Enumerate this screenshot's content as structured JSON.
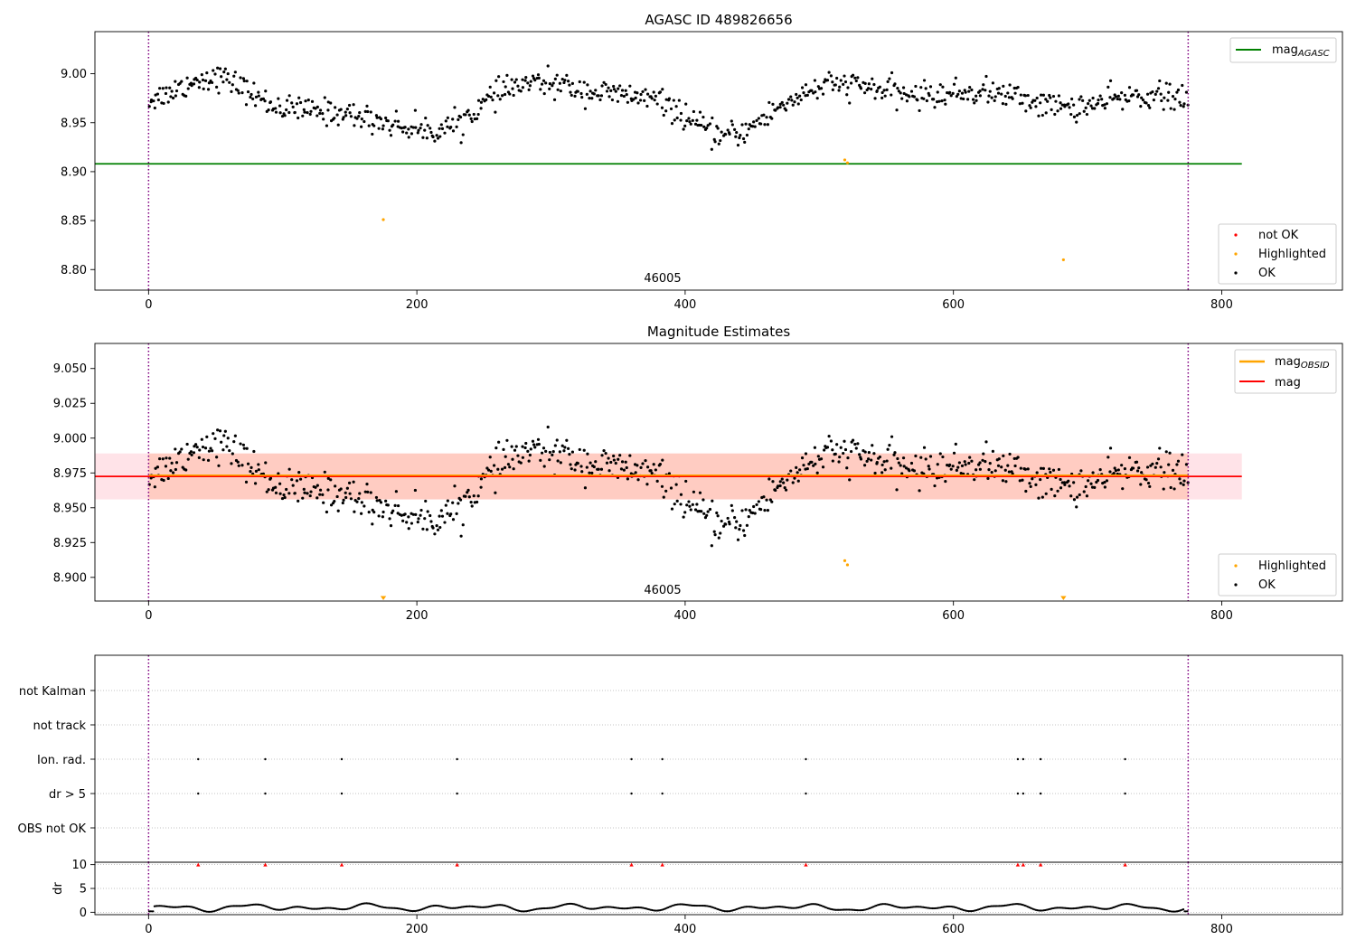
{
  "chart_data": [
    {
      "type": "scatter",
      "title": "AGASC ID 489826656",
      "xlim": [
        -40,
        890
      ],
      "ylim": [
        8.779,
        9.043
      ],
      "xticks": [
        0,
        200,
        400,
        600,
        800
      ],
      "yticks": [
        8.8,
        8.85,
        8.9,
        8.95,
        9.0
      ],
      "ytick_labels": [
        "8.80",
        "8.85",
        "8.90",
        "8.95",
        "9.00"
      ],
      "obsid_label": "46005",
      "obsid_boundaries": [
        0,
        775
      ],
      "lines": [
        {
          "name": "mag$_{AGASC}$",
          "label_main": "mag",
          "label_sub": "AGASC",
          "y": 8.908,
          "x": [
            -40,
            815
          ],
          "color": "#008000"
        }
      ],
      "legend_lines_position": "upper right",
      "legend_points_position": "lower right",
      "series": [
        {
          "name": "not OK",
          "color": "#ff0000",
          "points": []
        },
        {
          "name": "Highlighted",
          "color": "#ffa500",
          "points": [
            [
              175,
              8.851
            ],
            [
              519,
              8.912
            ],
            [
              521,
              8.909
            ],
            [
              682,
              8.81
            ]
          ]
        },
        {
          "name": "OK",
          "color": "#000000",
          "model": "lightcurve",
          "n_points": 775
        }
      ]
    },
    {
      "type": "scatter",
      "title": "Magnitude Estimates",
      "xlim": [
        -40,
        890
      ],
      "ylim": [
        8.883,
        9.068
      ],
      "xticks": [
        0,
        200,
        400,
        600,
        800
      ],
      "yticks": [
        8.9,
        8.925,
        8.95,
        8.975,
        9.0,
        9.025,
        9.05
      ],
      "ytick_labels": [
        "8.900",
        "8.925",
        "8.950",
        "8.975",
        "9.000",
        "9.025",
        "9.050"
      ],
      "obsid_label": "46005",
      "obsid_boundaries": [
        0,
        775
      ],
      "bands": [
        {
          "y0": 8.956,
          "y1": 8.989,
          "x": [
            -40,
            815
          ],
          "color": "#ffc0cb",
          "opacity": 0.45
        },
        {
          "y0": 8.956,
          "y1": 8.989,
          "x": [
            0,
            775
          ],
          "color": "#ffa07a",
          "opacity": 0.35
        }
      ],
      "lines": [
        {
          "name": "mag$_{OBSID}$",
          "label_main": "mag",
          "label_sub": "OBSID",
          "y": 8.9725,
          "x": [
            0,
            775
          ],
          "color": "#ffa500"
        },
        {
          "name": "mag",
          "label_main": "mag",
          "label_sub": "",
          "y": 8.9725,
          "x": [
            -40,
            815
          ],
          "color": "#ff0000"
        }
      ],
      "legend_lines_position": "upper right",
      "legend_points_position": "lower right",
      "series": [
        {
          "name": "Highlighted",
          "color": "#ffa500",
          "points": [
            [
              519,
              8.912
            ],
            [
              521,
              8.909
            ]
          ],
          "offscale_low": [
            175,
            682
          ]
        },
        {
          "name": "OK",
          "color": "#000000",
          "model": "lightcurve",
          "n_points": 775
        }
      ]
    },
    {
      "type": "scatter",
      "title": "",
      "xlim": [
        -40,
        890
      ],
      "categories": [
        "not Kalman",
        "not track",
        "Ion. rad.",
        "dr > 5",
        "OBS not OK"
      ],
      "obsid_boundaries": [
        0,
        775
      ],
      "flags": {
        "Ion. rad.": [
          37,
          87,
          144,
          230,
          360,
          383,
          490,
          648,
          652,
          665,
          728
        ],
        "dr > 5": [
          37,
          87,
          144,
          230,
          360,
          383,
          490,
          648,
          652,
          665,
          728
        ]
      }
    },
    {
      "type": "scatter",
      "title": "",
      "ylabel": "dr",
      "xlim": [
        -40,
        890
      ],
      "ylim": [
        -0.5,
        10.5
      ],
      "yticks": [
        0,
        5,
        10
      ],
      "ytick_labels": [
        "0",
        "5",
        "10"
      ],
      "xticks": [
        0,
        200,
        400,
        600,
        800
      ],
      "obsid_boundaries": [
        0,
        775
      ],
      "dr_spikes": [
        37,
        87,
        144,
        230,
        360,
        383,
        490,
        648,
        652,
        665,
        728
      ],
      "dr_spike_value": 10,
      "dr_baseline_range": [
        0.1,
        2.5
      ]
    }
  ],
  "colors": {
    "ok": "#000000",
    "highlighted": "#ffa500",
    "not_ok": "#ff0000",
    "agasc_line": "#008000",
    "obsid_line": "#ffa500",
    "mag_line": "#ff0000",
    "boundary": "#800080"
  }
}
